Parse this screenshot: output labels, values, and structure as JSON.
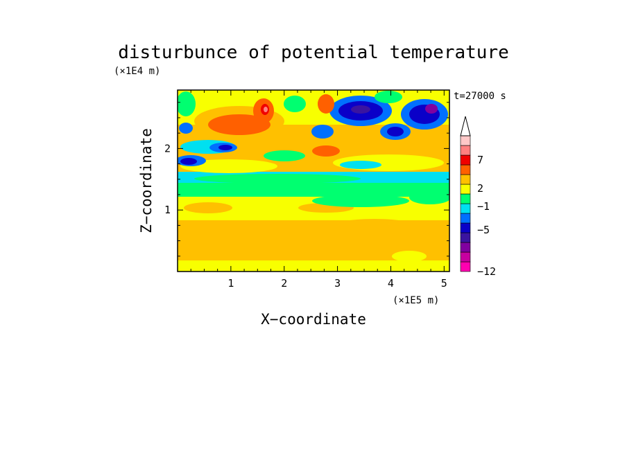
{
  "chart_data": {
    "type": "heatmap",
    "title": "disturbunce of potential temperature",
    "xlabel": "X−coordinate",
    "ylabel": "Z−coordinate",
    "x_unit": "(×1E5 m)",
    "y_unit": "(×1E4 m)",
    "time_label": "t=27000 s",
    "xlim": [
      0,
      5.1
    ],
    "ylim": [
      0,
      2.95
    ],
    "x_ticks": [
      1,
      2,
      3,
      4,
      5
    ],
    "y_ticks": [
      1,
      2
    ],
    "x_tick_labels": [
      "1",
      "2",
      "3",
      "4",
      "5"
    ],
    "y_tick_labels": [
      "1",
      "2"
    ],
    "colorbar": {
      "levels": [
        {
          "color": "#ff00b0"
        },
        {
          "color": "#c800a0"
        },
        {
          "color": "#8000a0"
        },
        {
          "color": "#3a14a0"
        },
        {
          "color": "#0a00c8"
        },
        {
          "color": "#0070ff"
        },
        {
          "color": "#00e0f0"
        },
        {
          "color": "#00ff70"
        },
        {
          "color": "#f8ff00"
        },
        {
          "color": "#ffc000"
        },
        {
          "color": "#ff6000"
        },
        {
          "color": "#f00000"
        },
        {
          "color": "#ff8080"
        },
        {
          "color": "#ffc8c8"
        }
      ],
      "extend_top": true,
      "labels": [
        "7",
        "2",
        "−1",
        "−5",
        "−12"
      ]
    },
    "field_bands": [
      {
        "z_range": [
          0.0,
          0.6
        ],
        "dominant": "yellow-orange",
        "value_range": [
          1,
          4
        ]
      },
      {
        "z_range": [
          0.6,
          1.2
        ],
        "dominant": "yellow",
        "value_range": [
          0,
          2
        ]
      },
      {
        "z_range": [
          1.2,
          1.6
        ],
        "dominant": "green-cyan",
        "value_range": [
          -2,
          0
        ]
      },
      {
        "z_range": [
          1.6,
          2.2
        ],
        "dominant": "mixed orange/blue",
        "value_range": [
          -6,
          6
        ]
      },
      {
        "z_range": [
          2.2,
          2.95
        ],
        "dominant": "strong blue/red anomalies",
        "value_range": [
          -9,
          8
        ]
      }
    ]
  }
}
